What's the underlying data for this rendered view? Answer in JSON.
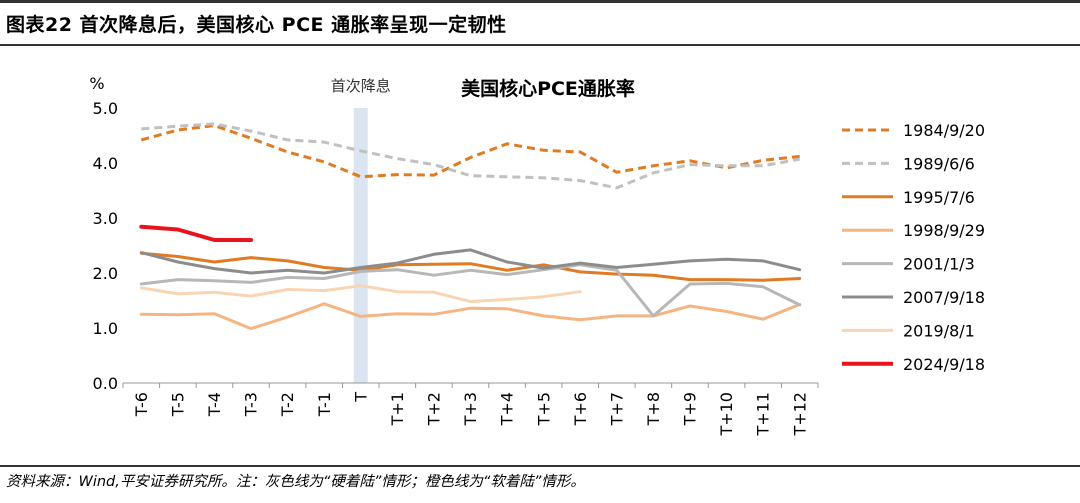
{
  "header": {
    "figure_title": "图表22    首次降息后，美国核心 PCE 通胀率呈现一定韧性"
  },
  "footer": {
    "source_note": "资料来源：Wind,平安证券研究所。注：灰色线为“硬着陆”情形；橙色线为“软着陆”情形。"
  },
  "chart_data": {
    "type": "line",
    "title": "美国核心PCE通胀率",
    "ylabel": "%",
    "xlabel": "",
    "ylim": [
      0,
      5
    ],
    "yticks": [
      "0.0",
      "1.0",
      "2.0",
      "3.0",
      "4.0",
      "5.0"
    ],
    "categories": [
      "T-6",
      "T-5",
      "T-4",
      "T-3",
      "T-2",
      "T-1",
      "T",
      "T+1",
      "T+2",
      "T+3",
      "T+4",
      "T+5",
      "T+6",
      "T+7",
      "T+8",
      "T+9",
      "T+10",
      "T+11",
      "T+12"
    ],
    "annotation": {
      "label": "首次降息",
      "category": "T",
      "color": "#dbe5f1"
    },
    "legend_position": "right",
    "series": [
      {
        "name": "1984/9/20",
        "color": "#e07b24",
        "dash": true,
        "width": 3,
        "values": [
          4.42,
          4.6,
          4.68,
          4.45,
          4.2,
          4.02,
          3.75,
          3.79,
          3.78,
          4.1,
          4.35,
          4.23,
          4.2,
          3.83,
          3.95,
          4.04,
          3.91,
          4.05,
          4.12
        ]
      },
      {
        "name": "1989/6/6",
        "color": "#c0c0c0",
        "dash": true,
        "width": 3,
        "values": [
          4.62,
          4.67,
          4.71,
          4.58,
          4.42,
          4.38,
          4.22,
          4.08,
          3.97,
          3.77,
          3.75,
          3.73,
          3.68,
          3.55,
          3.82,
          3.97,
          3.95,
          3.95,
          4.07
        ]
      },
      {
        "name": "1995/7/6",
        "color": "#e07b24",
        "dash": false,
        "width": 3,
        "values": [
          2.36,
          2.3,
          2.2,
          2.28,
          2.22,
          2.1,
          2.05,
          2.15,
          2.16,
          2.17,
          2.05,
          2.15,
          2.02,
          1.98,
          1.96,
          1.88,
          1.88,
          1.87,
          1.9
        ]
      },
      {
        "name": "1998/9/29",
        "color": "#f4b582",
        "dash": false,
        "width": 3,
        "values": [
          1.25,
          1.24,
          1.26,
          0.99,
          1.2,
          1.44,
          1.21,
          1.26,
          1.25,
          1.36,
          1.35,
          1.22,
          1.15,
          1.22,
          1.22,
          1.4,
          1.3,
          1.16,
          1.43
        ]
      },
      {
        "name": "2001/1/3",
        "color": "#b7b7b7",
        "dash": false,
        "width": 3,
        "values": [
          1.8,
          1.88,
          1.86,
          1.83,
          1.92,
          1.9,
          2.03,
          2.06,
          1.96,
          2.05,
          1.97,
          2.06,
          2.15,
          2.05,
          1.22,
          1.8,
          1.81,
          1.75,
          1.42
        ]
      },
      {
        "name": "2007/9/18",
        "color": "#8c8c8c",
        "dash": false,
        "width": 3,
        "values": [
          2.37,
          2.2,
          2.08,
          2.0,
          2.05,
          2.0,
          2.1,
          2.18,
          2.34,
          2.42,
          2.2,
          2.09,
          2.18,
          2.1,
          2.16,
          2.22,
          2.25,
          2.22,
          2.06
        ]
      },
      {
        "name": "2019/8/1",
        "color": "#f9d4b3",
        "dash": false,
        "width": 3,
        "values": [
          1.73,
          1.62,
          1.65,
          1.58,
          1.7,
          1.68,
          1.77,
          1.66,
          1.65,
          1.48,
          1.52,
          1.57,
          1.66,
          null,
          null,
          null,
          null,
          null,
          null
        ]
      },
      {
        "name": "2024/9/18",
        "color": "#e8141b",
        "dash": false,
        "width": 4,
        "values": [
          2.84,
          2.79,
          2.6,
          2.6,
          null,
          null,
          null,
          null,
          null,
          null,
          null,
          null,
          null,
          null,
          null,
          null,
          null,
          null,
          null
        ]
      }
    ]
  }
}
